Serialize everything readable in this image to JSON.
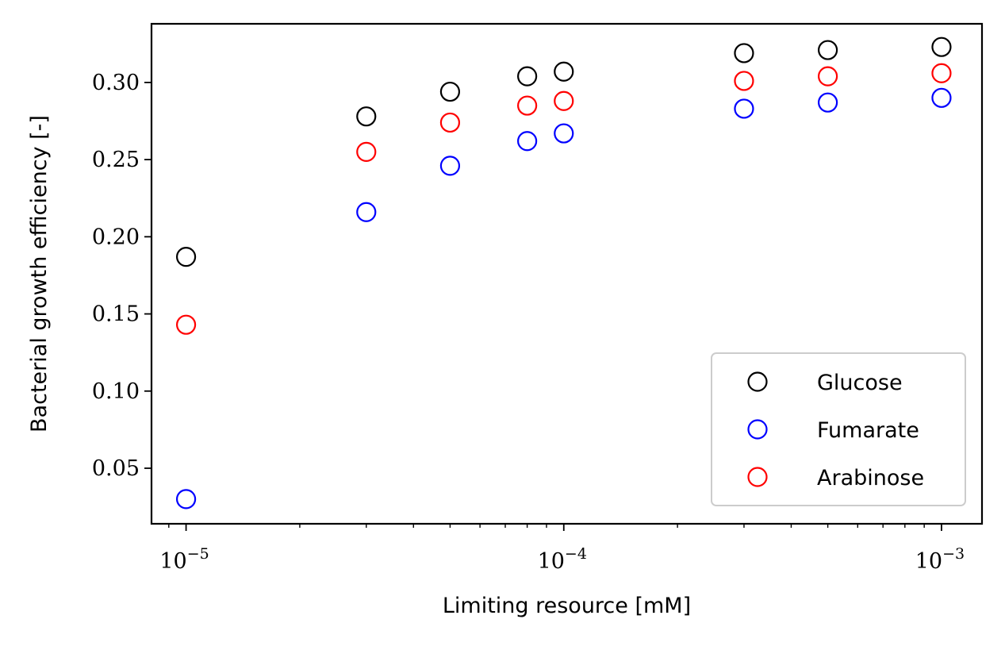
{
  "chart_data": {
    "type": "scatter",
    "title": "",
    "xlabel": "Limiting resource [mM]",
    "ylabel": "Bacterial growth efficiency [-]",
    "xscale": "log",
    "xlim": [
      8.1e-06,
      0.00128
    ],
    "ylim": [
      0.014,
      0.338
    ],
    "x_ticks": [
      1e-05,
      0.0001,
      0.001
    ],
    "x_tick_labels": [
      {
        "base": "10",
        "exp": "−5"
      },
      {
        "base": "10",
        "exp": "−4"
      },
      {
        "base": "10",
        "exp": "−3"
      }
    ],
    "y_ticks": [
      0.05,
      0.1,
      0.15,
      0.2,
      0.25,
      0.3
    ],
    "y_tick_labels": [
      "0.05",
      "0.10",
      "0.15",
      "0.20",
      "0.25",
      "0.30"
    ],
    "grid": false,
    "legend_position": "lower right",
    "marker": "open circle",
    "series": [
      {
        "name": "Glucose",
        "color": "#000000",
        "x": [
          1e-05,
          3e-05,
          5e-05,
          8e-05,
          0.0001,
          0.0003,
          0.0005,
          0.001
        ],
        "y": [
          0.187,
          0.278,
          0.294,
          0.304,
          0.307,
          0.319,
          0.321,
          0.323
        ]
      },
      {
        "name": "Fumarate",
        "color": "#0000ff",
        "x": [
          1e-05,
          3e-05,
          5e-05,
          8e-05,
          0.0001,
          0.0003,
          0.0005,
          0.001
        ],
        "y": [
          0.03,
          0.216,
          0.246,
          0.262,
          0.267,
          0.283,
          0.287,
          0.29
        ]
      },
      {
        "name": "Arabinose",
        "color": "#ff0000",
        "x": [
          1e-05,
          3e-05,
          5e-05,
          8e-05,
          0.0001,
          0.0003,
          0.0005,
          0.001
        ],
        "y": [
          0.143,
          0.255,
          0.274,
          0.285,
          0.288,
          0.301,
          0.304,
          0.306
        ]
      }
    ]
  }
}
